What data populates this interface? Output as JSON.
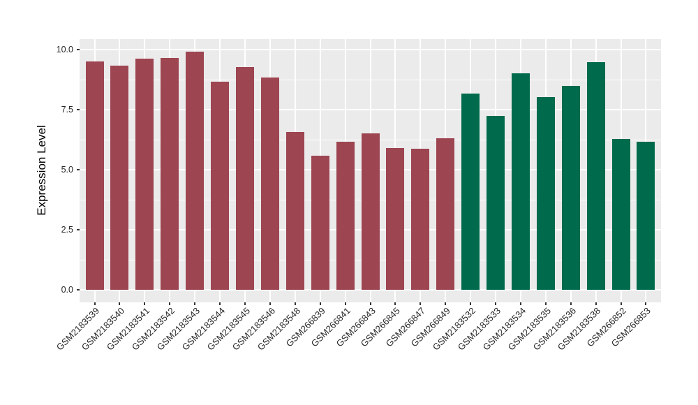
{
  "chart_data": {
    "type": "bar",
    "ylabel": "Expression Level",
    "xlabel": "",
    "ylim": [
      -0.5,
      10.45
    ],
    "yticks": [
      {
        "value": 0,
        "label": "0.0"
      },
      {
        "value": 2.5,
        "label": "2.5"
      },
      {
        "value": 5,
        "label": "5.0"
      },
      {
        "value": 7.5,
        "label": "7.5"
      },
      {
        "value": 10,
        "label": "10.0"
      }
    ],
    "minor_yticks": [
      1.25,
      3.75,
      6.25,
      8.75
    ],
    "legend": "none",
    "grid": "white major and minor gridlines on gray panel",
    "panel_background": "#EBEBEB",
    "gridline_color": "#FFFFFF",
    "axis_text_color": "#262626",
    "tick_mark_color": "#333333",
    "group_colors": {
      "maroon": "#9E4552",
      "green": "#006B4C"
    },
    "categories": [
      "GSM2183539",
      "GSM2183540",
      "GSM2183541",
      "GSM2183542",
      "GSM2183543",
      "GSM2183544",
      "GSM2183545",
      "GSM2183546",
      "GSM2183548",
      "GSM266839",
      "GSM266841",
      "GSM266843",
      "GSM266845",
      "GSM266847",
      "GSM266849",
      "GSM2183532",
      "GSM2183533",
      "GSM2183534",
      "GSM2183535",
      "GSM2183536",
      "GSM2183538",
      "GSM266852",
      "GSM266853"
    ],
    "values": [
      9.5,
      9.33,
      9.62,
      9.65,
      9.91,
      8.66,
      9.27,
      8.84,
      6.57,
      5.58,
      6.16,
      6.51,
      5.9,
      5.87,
      6.31,
      8.17,
      7.24,
      9.01,
      8.02,
      8.49,
      9.48,
      6.28,
      6.16
    ],
    "bar_colors": [
      "#9E4552",
      "#9E4552",
      "#9E4552",
      "#9E4552",
      "#9E4552",
      "#9E4552",
      "#9E4552",
      "#9E4552",
      "#9E4552",
      "#9E4552",
      "#9E4552",
      "#9E4552",
      "#9E4552",
      "#9E4552",
      "#9E4552",
      "#006B4C",
      "#006B4C",
      "#006B4C",
      "#006B4C",
      "#006B4C",
      "#006B4C",
      "#006B4C",
      "#006B4C"
    ]
  }
}
